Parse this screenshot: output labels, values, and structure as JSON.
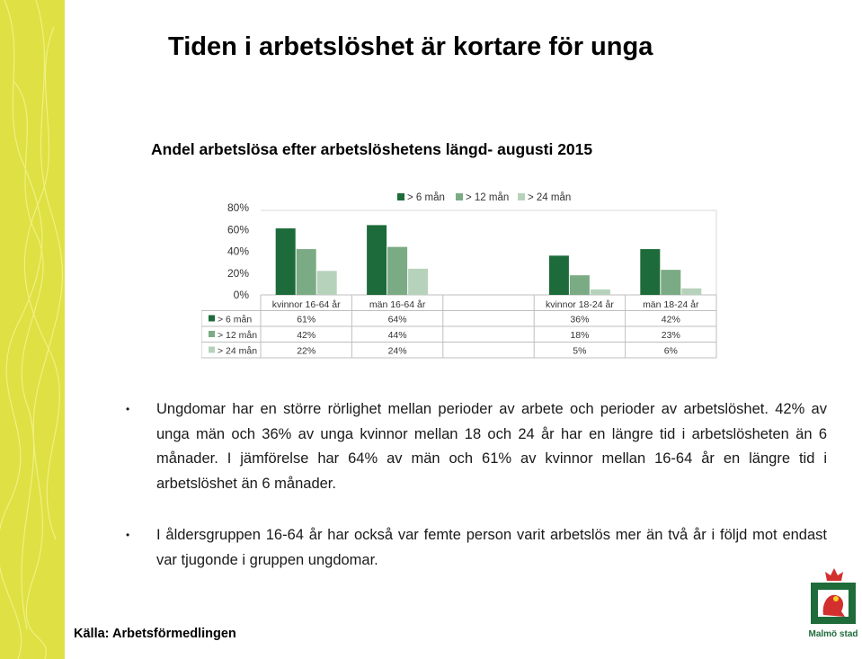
{
  "title": "Tiden i arbetslöshet är kortare för unga",
  "subtitle": "Andel arbetslösa efter arbetslöshetens längd- augusti 2015",
  "bullets": [
    "Ungdomar har en större rörlighet mellan perioder av arbete och perioder av arbetslöshet. 42% av unga män och 36% av unga kvinnor mellan 18 och 24 år har en längre tid i arbetslösheten än 6 månader. I jämförelse har 64% av män och 61% av kvinnor mellan 16-64 år en längre tid i arbetslöshet än 6 månader.",
    "I åldersgruppen 16-64 år  har också var femte person varit arbetslös mer än två år i följd mot endast var tjugonde i gruppen ungdomar."
  ],
  "source": "Källa: Arbetsförmedlingen",
  "logo": {
    "text": "Malmö stad",
    "icon": "malmo-stad-griffin-logo"
  },
  "colors": {
    "stripe": "#dfe043",
    "s1": "#1d6b3a",
    "s2": "#7bab84",
    "s3": "#b7d2bb"
  },
  "chart_data": {
    "type": "bar",
    "title": "",
    "categories": [
      "kvinnor 16-64 år",
      "män 16-64 år",
      "",
      "kvinnor 18-24 år",
      "män 18-24 år"
    ],
    "series": [
      {
        "name": "> 6 mån",
        "values": [
          61,
          64,
          null,
          36,
          42
        ],
        "labels": [
          "61%",
          "64%",
          "",
          "36%",
          "42%"
        ]
      },
      {
        "name": "> 12 mån",
        "values": [
          42,
          44,
          null,
          18,
          23
        ],
        "labels": [
          "42%",
          "44%",
          "",
          "18%",
          "23%"
        ]
      },
      {
        "name": "> 24 mån",
        "values": [
          22,
          24,
          null,
          5,
          6
        ],
        "labels": [
          "22%",
          "24%",
          "",
          "5%",
          "6%"
        ]
      }
    ],
    "yticks": [
      "0%",
      "20%",
      "40%",
      "60%",
      "80%"
    ],
    "ylim": [
      0,
      80
    ],
    "legend": "top",
    "data_table": true
  }
}
